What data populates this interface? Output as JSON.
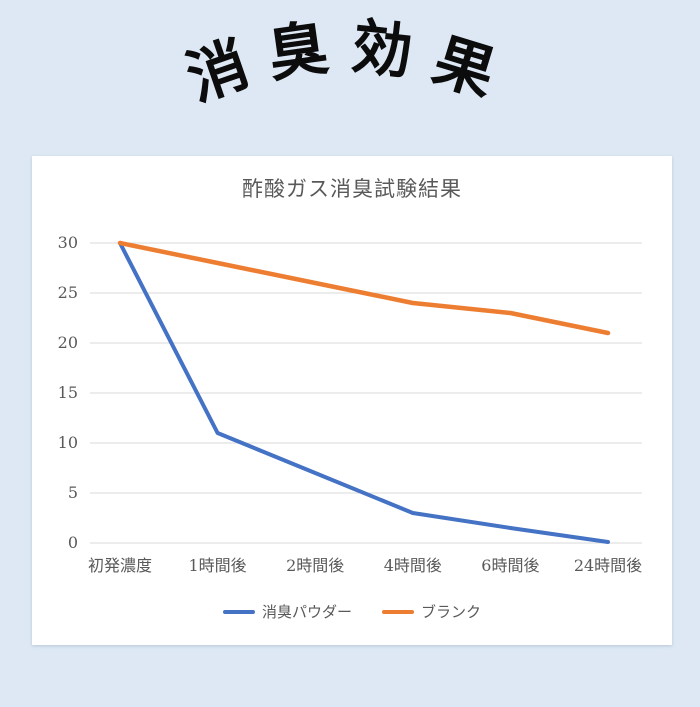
{
  "page": {
    "background_color": "#dde8f4",
    "card_color": "#ffffff",
    "text_gray": "#595959",
    "gridline_color": "#d9d9d9"
  },
  "header": {
    "title": "消臭効果",
    "title_chars": [
      "消",
      "臭",
      "効",
      "果"
    ]
  },
  "chart_data": {
    "type": "line",
    "title": "酢酸ガス消臭試験結果",
    "categories": [
      "初発濃度",
      "1時間後",
      "2時間後",
      "4時間後",
      "6時間後",
      "24時間後"
    ],
    "series": [
      {
        "name": "消臭パウダー",
        "color": "#4472C4",
        "values": [
          30,
          11,
          7,
          3,
          1.5,
          0.1
        ]
      },
      {
        "name": "ブランク",
        "color": "#ED7D31",
        "values": [
          30,
          28,
          26,
          24,
          23,
          21
        ]
      }
    ],
    "xlabel": "",
    "ylabel": "",
    "ylim": [
      0,
      30
    ],
    "yticks": [
      0,
      5,
      10,
      15,
      20,
      25,
      30
    ],
    "grid": true,
    "legend_position": "bottom"
  }
}
